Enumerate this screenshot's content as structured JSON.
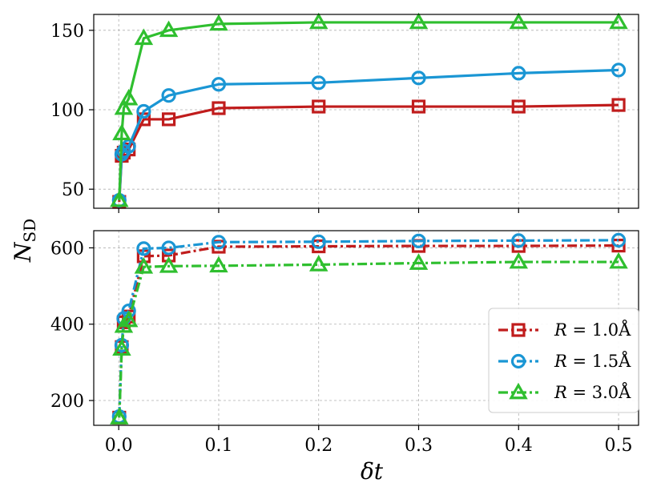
{
  "chart_data": [
    {
      "type": "line",
      "panel": "top",
      "x": [
        0.0005,
        0.003,
        0.005,
        0.01,
        0.025,
        0.05,
        0.1,
        0.2,
        0.3,
        0.4,
        0.5
      ],
      "series": [
        {
          "name": "R = 1.0 Å",
          "color": "#c01c1c",
          "marker": "square",
          "linestyle": "solid",
          "values": [
            42,
            71,
            73,
            75,
            94,
            94,
            101,
            102,
            102,
            102,
            103
          ]
        },
        {
          "name": "R = 1.5 Å",
          "color": "#1a96d4",
          "marker": "circle",
          "linestyle": "solid",
          "values": [
            43,
            72,
            74,
            77,
            99,
            109,
            116,
            117,
            120,
            123,
            125
          ]
        },
        {
          "name": "R = 3.0 Å",
          "color": "#2fbf2f",
          "marker": "triangle",
          "linestyle": "solid",
          "values": [
            43,
            85,
            101,
            107,
            145,
            150,
            154,
            155,
            155,
            155,
            155
          ]
        }
      ],
      "xlim": [
        -0.025,
        0.52
      ],
      "ylim": [
        38,
        160
      ],
      "yticks": [
        50,
        100,
        150
      ],
      "grid": true
    },
    {
      "type": "line",
      "panel": "bottom",
      "x": [
        0.0005,
        0.003,
        0.005,
        0.01,
        0.025,
        0.05,
        0.1,
        0.2,
        0.3,
        0.4,
        0.5
      ],
      "series": [
        {
          "name": "R = 1.0 Å",
          "color": "#c01c1c",
          "marker": "square",
          "linestyle": "dashdot",
          "values": [
            155,
            340,
            405,
            420,
            578,
            580,
            603,
            604,
            605,
            605,
            606
          ]
        },
        {
          "name": "R = 1.5 Å",
          "color": "#1a96d4",
          "marker": "circle",
          "linestyle": "dashdot",
          "values": [
            158,
            345,
            415,
            435,
            598,
            600,
            615,
            616,
            618,
            619,
            620
          ]
        },
        {
          "name": "R = 3.0 Å",
          "color": "#2fbf2f",
          "marker": "triangle",
          "linestyle": "dashdot",
          "values": [
            155,
            335,
            395,
            410,
            550,
            552,
            553,
            556,
            560,
            563,
            563
          ]
        }
      ],
      "xlim": [
        -0.025,
        0.52
      ],
      "ylim": [
        135,
        645
      ],
      "yticks": [
        200,
        400,
        600
      ],
      "grid": true
    }
  ],
  "xticks": [
    0.0,
    0.1,
    0.2,
    0.3,
    0.4,
    0.5
  ],
  "xtick_labels": [
    "0.0",
    "0.1",
    "0.2",
    "0.3",
    "0.4",
    "0.5"
  ],
  "xlabel": "δt",
  "ylabel_main": "N",
  "ylabel_sub": "SD",
  "legend": {
    "placement": "lower right of bottom panel",
    "entries": [
      {
        "prefix": "R",
        "value": "1.0Å"
      },
      {
        "prefix": "R",
        "value": "1.5Å"
      },
      {
        "prefix": "R",
        "value": "3.0Å"
      }
    ]
  }
}
